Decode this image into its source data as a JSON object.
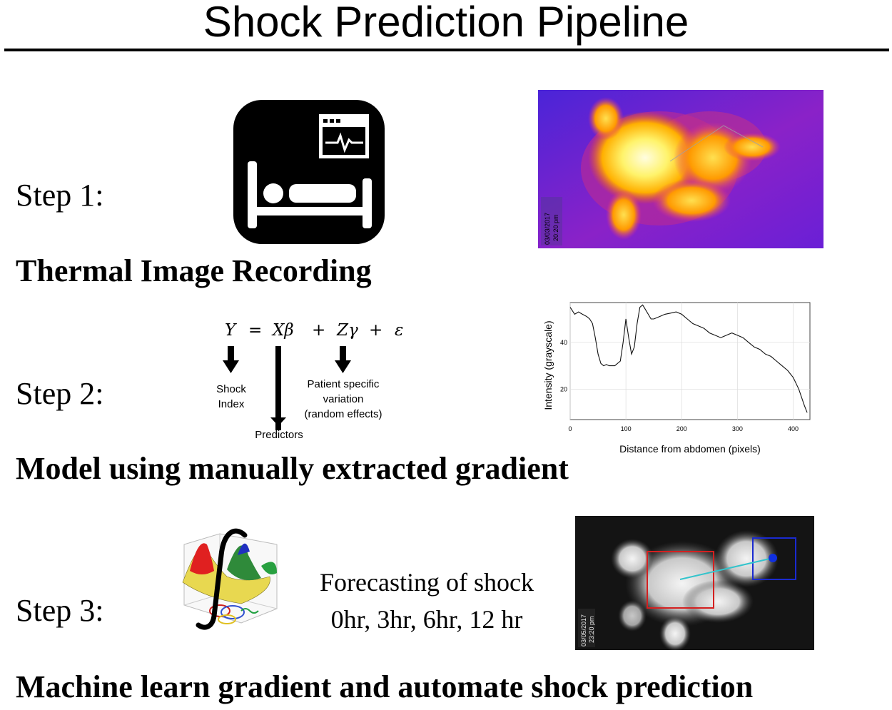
{
  "title": "Shock Prediction Pipeline",
  "steps": [
    {
      "label": "Step 1:",
      "heading": "Thermal Image Recording"
    },
    {
      "label": "Step 2:",
      "heading": "Model using manually extracted gradient"
    },
    {
      "label": "Step 3:",
      "heading": "Machine learn gradient and automate shock prediction"
    }
  ],
  "equation": {
    "tokens": [
      "Y",
      "=",
      "Xβ",
      "+",
      "Zγ",
      "+",
      "ε"
    ],
    "shock_label_1": "Shock",
    "shock_label_2": "Index",
    "predictors_label": "Predictors",
    "patient_label_1": "Patient specific",
    "patient_label_2": "variation",
    "patient_label_3": "(random effects)"
  },
  "thermal_photo_1": {
    "date": "03/03/2017",
    "time": "20:20 pm"
  },
  "thermal_photo_2": {
    "date": "03/05/2017",
    "time": "23:20 pm"
  },
  "forecast": {
    "line1": "Forecasting of shock",
    "line2": "0hr, 3hr, 6hr, 12 hr"
  },
  "chart_data": {
    "type": "line",
    "xlabel": "Distance from abdomen (pixels)",
    "ylabel": "Intensity (grayscale)",
    "xlim": [
      0,
      430
    ],
    "ylim": [
      7,
      57
    ],
    "xticks": [
      "0",
      "100",
      "200",
      "300",
      "400"
    ],
    "yticks": [
      "20",
      "40"
    ],
    "grid": true,
    "series": [
      {
        "x": [
          0,
          8,
          15,
          22,
          30,
          35,
          40,
          45,
          50,
          55,
          60,
          65,
          70,
          80,
          90,
          95,
          100,
          105,
          110,
          115,
          120,
          125,
          130,
          135,
          140,
          145,
          150,
          160,
          170,
          180,
          190,
          200,
          210,
          220,
          230,
          240,
          250,
          260,
          270,
          280,
          290,
          300,
          310,
          320,
          330,
          340,
          350,
          360,
          370,
          380,
          390,
          400,
          410,
          420,
          425
        ],
        "y": [
          55,
          52,
          53,
          52,
          51,
          50,
          48,
          42,
          35,
          31,
          30,
          30.5,
          30,
          30,
          32,
          40,
          50,
          42,
          35,
          38,
          48,
          55,
          56,
          54,
          52,
          50,
          50,
          51,
          52,
          52.5,
          53,
          52,
          50,
          48,
          47,
          46,
          44,
          43,
          42,
          43,
          44,
          43,
          42,
          40,
          38,
          37,
          35,
          34,
          32,
          30,
          28,
          25,
          20,
          13,
          10
        ]
      }
    ]
  },
  "colors": {
    "thermal_bg": "#6a1fd6",
    "thermal_hot": "#fff36b",
    "bbox_red": "#d42020",
    "bbox_blue": "#1a2ad0",
    "track_line": "#33c4cc"
  }
}
